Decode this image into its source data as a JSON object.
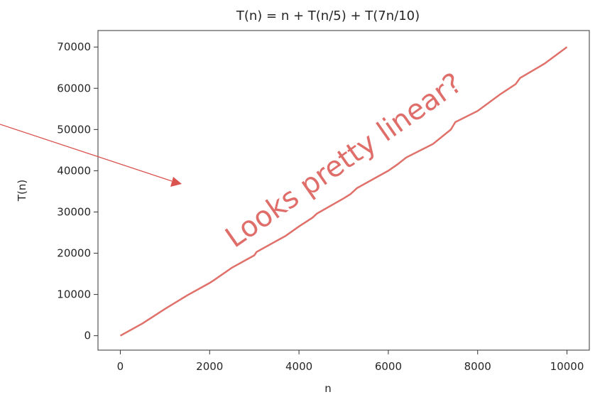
{
  "chart_data": {
    "type": "line",
    "title": "T(n) = n + T(n/5) + T(7n/10)",
    "xlabel": "n",
    "ylabel": "T(n)",
    "xlim": [
      -500,
      10500
    ],
    "ylim": [
      -3500,
      74000
    ],
    "xticks": [
      0,
      2000,
      4000,
      6000,
      8000,
      10000
    ],
    "yticks": [
      0,
      10000,
      20000,
      30000,
      40000,
      50000,
      60000,
      70000
    ],
    "grid": false,
    "series": [
      {
        "color": "#e0706a",
        "x": [
          0,
          500,
          1000,
          1500,
          2000,
          2100,
          2500,
          3000,
          3050,
          3500,
          3700,
          4000,
          4300,
          4400,
          5000,
          5150,
          5300,
          6000,
          6200,
          6400,
          7000,
          7400,
          7500,
          8000,
          8500,
          8850,
          8950,
          9500,
          10000
        ],
        "y": [
          0,
          3000,
          6500,
          9800,
          12800,
          13500,
          16500,
          19500,
          20300,
          23000,
          24200,
          26500,
          28600,
          29600,
          33300,
          34300,
          35800,
          40000,
          41500,
          43200,
          46500,
          50000,
          51800,
          54500,
          58500,
          61000,
          62500,
          66000,
          70000
        ]
      }
    ],
    "annotation": {
      "text": "Looks pretty linear?",
      "color": "#d9534f"
    },
    "arrow_color": "#d9534f"
  }
}
